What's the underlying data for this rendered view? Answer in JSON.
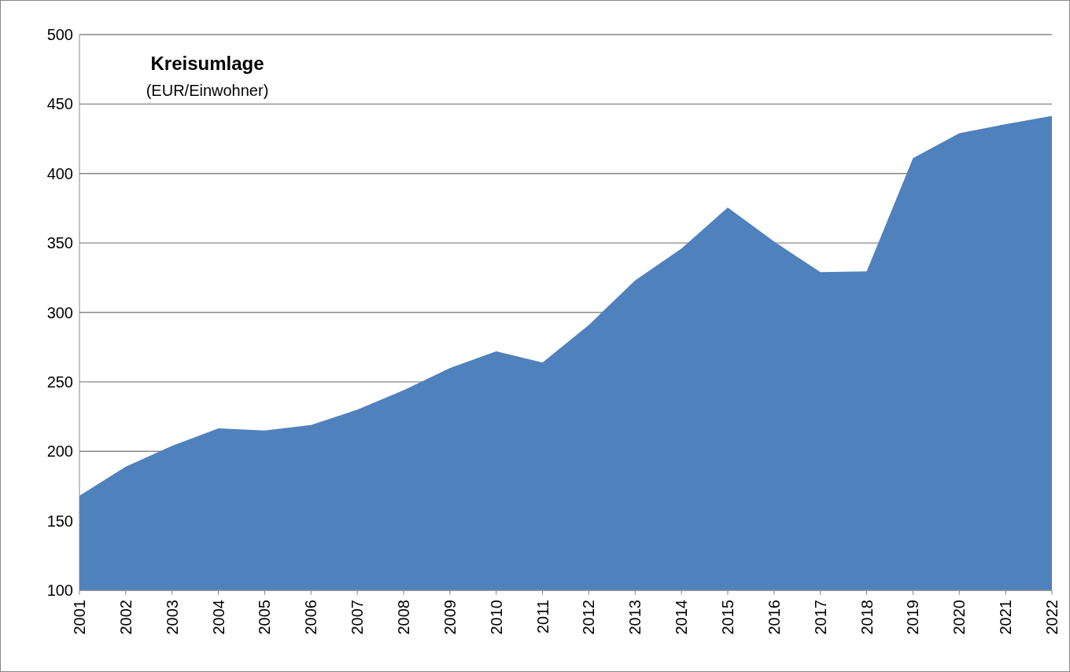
{
  "chart_data": {
    "type": "area",
    "title": "Kreisumlage",
    "subtitle": "(EUR/Einwohner)",
    "categories": [
      "2001",
      "2002",
      "2003",
      "2004",
      "2005",
      "2006",
      "2007",
      "2008",
      "2009",
      "2010",
      "2011",
      "2012",
      "2013",
      "2014",
      "2015",
      "2016",
      "2017",
      "2018",
      "2019",
      "2020",
      "2021",
      "2022"
    ],
    "series": [
      {
        "color": "#4f81bd",
        "values": [
          168,
          189,
          204,
          216.5,
          215,
          219,
          230,
          244,
          260,
          272,
          264,
          291,
          323,
          346,
          375.5,
          351,
          329,
          329.5,
          411,
          429,
          435.5,
          441.5
        ]
      }
    ],
    "ylim": [
      100,
      500
    ],
    "yticks": [
      100,
      150,
      200,
      250,
      300,
      350,
      400,
      450,
      500
    ],
    "grid": "y",
    "legend": false
  }
}
